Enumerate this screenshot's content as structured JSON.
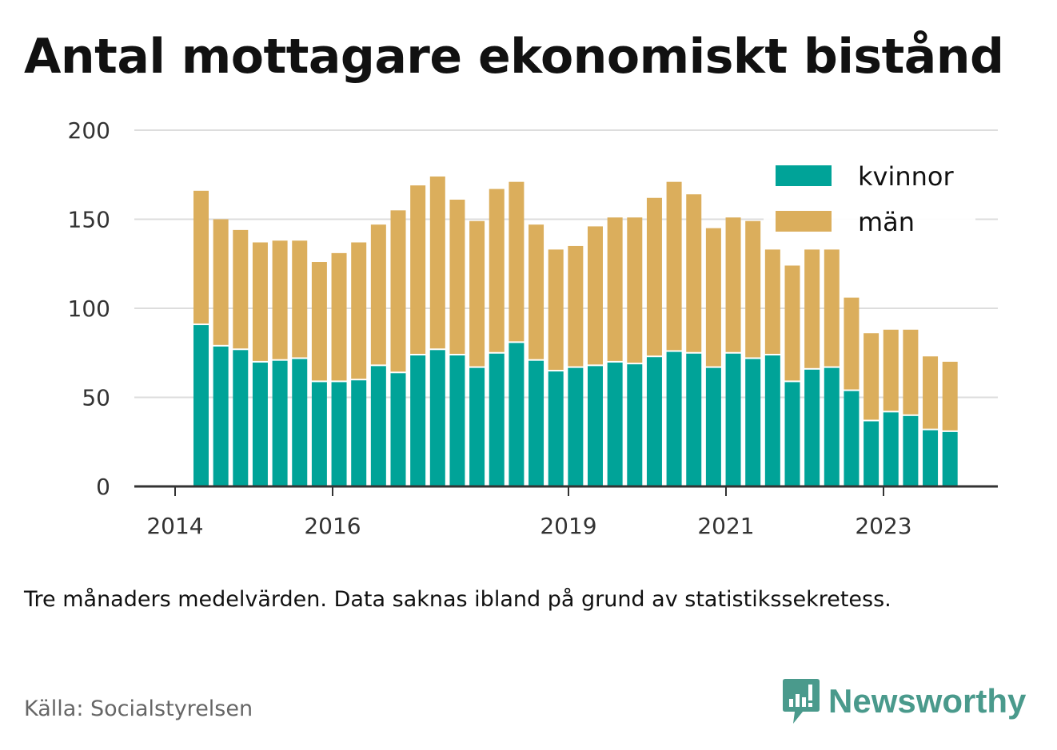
{
  "title": "Antal mottagare ekonomiskt bistånd",
  "note": "Tre månaders medelvärden. Data saknas ibland på grund av statistikssekretess.",
  "source": "Källa: Socialstyrelsen",
  "brand": {
    "name": "Newsworthy",
    "icon": "newsworthy-logo-icon",
    "color": "#4a9a8c"
  },
  "colors": {
    "kvinnor": "#00a398",
    "man": "#dbae5c",
    "grid": "#dddddd",
    "axis": "#333333"
  },
  "chart_data": {
    "type": "bar",
    "stacked": true,
    "title": "Antal mottagare ekonomiskt bistånd",
    "xlabel": "",
    "ylabel": "",
    "ylim": [
      0,
      200
    ],
    "yticks": [
      0,
      50,
      100,
      150,
      200
    ],
    "xticks": [
      "2014",
      "2016",
      "2019",
      "2021",
      "2023"
    ],
    "grid": true,
    "legend_position": "top-right",
    "series": [
      {
        "name": "kvinnor",
        "color": "#00a398",
        "values": [
          91,
          79,
          77,
          70,
          71,
          72,
          59,
          59,
          60,
          68,
          64,
          74,
          77,
          74,
          67,
          75,
          81,
          71,
          65,
          67,
          68,
          70,
          69,
          73,
          76,
          75,
          67,
          75,
          72,
          74,
          59,
          66,
          67,
          54,
          37,
          42,
          40,
          32,
          31
        ]
      },
      {
        "name": "män",
        "color": "#dbae5c",
        "values": [
          75,
          71,
          67,
          67,
          67,
          66,
          67,
          72,
          77,
          79,
          91,
          95,
          97,
          87,
          82,
          92,
          90,
          76,
          68,
          68,
          78,
          81,
          82,
          89,
          95,
          89,
          78,
          76,
          77,
          59,
          65,
          67,
          66,
          52,
          49,
          46,
          48,
          41,
          39
        ]
      }
    ]
  }
}
